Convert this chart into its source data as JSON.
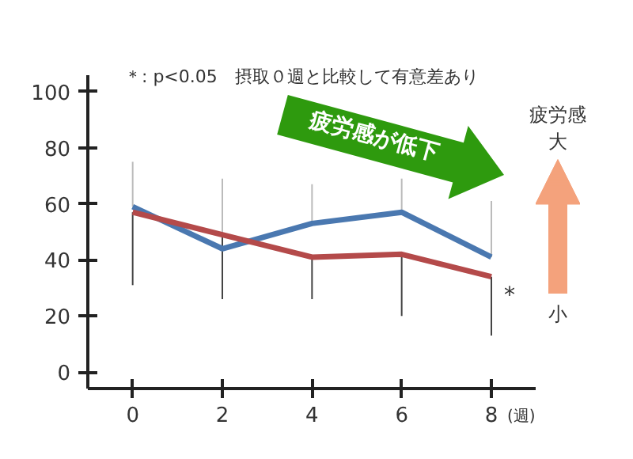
{
  "chart_data": {
    "type": "line",
    "x": [
      0,
      2,
      4,
      6,
      8
    ],
    "xlim": [
      -1,
      9
    ],
    "ylim": [
      -6,
      106
    ],
    "xticks": [
      0,
      2,
      4,
      6,
      8
    ],
    "yticks": [
      0,
      20,
      40,
      60,
      80,
      100
    ],
    "xlabel": "(週)",
    "grid": false,
    "line_style": "solid",
    "series": [
      {
        "color": "#4a78b0",
        "values": [
          59,
          44,
          53,
          57,
          41
        ],
        "errors": [
          [
            59,
            75
          ],
          [
            44,
            69
          ],
          [
            53,
            67
          ],
          [
            57,
            69
          ],
          [
            41,
            61
          ]
        ]
      },
      {
        "color": "#b44a4a",
        "values": [
          57,
          49,
          41,
          42,
          34
        ],
        "errors": [
          [
            31,
            57
          ],
          [
            26,
            49
          ],
          [
            26,
            41
          ],
          [
            20,
            42
          ],
          [
            13,
            34
          ]
        ]
      }
    ],
    "annotations": [
      "＊: p<0.05　摂取０週と比較して有意差あり",
      "疲労感が低下",
      "疲労感",
      "大",
      "小",
      {
        "text": "*",
        "x": 8,
        "y": 34
      }
    ]
  }
}
